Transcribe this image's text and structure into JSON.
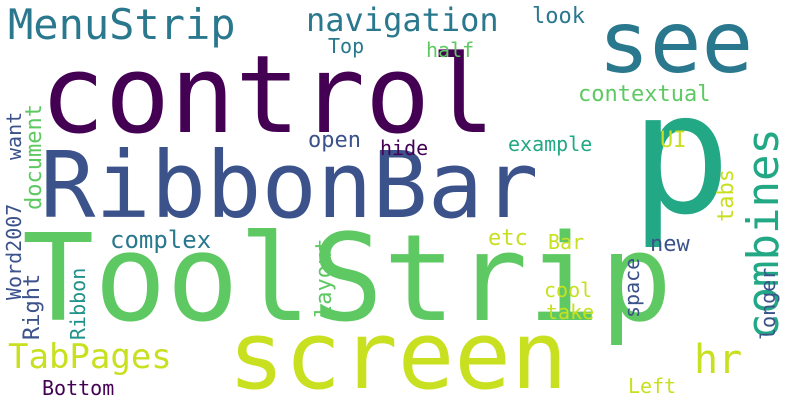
{
  "colors": {
    "background": "#ffffff",
    "palette": [
      "#440154",
      "#3b528b",
      "#2a788e",
      "#21918c",
      "#22a884",
      "#5ec962",
      "#addc30",
      "#c8e020"
    ]
  },
  "words": {
    "control": "control",
    "toolstrip": "ToolStrip",
    "ribbonbar": "RibbonBar",
    "see": "see",
    "p": "p",
    "screen": "screen",
    "menustrip": "MenuStrip",
    "combines": "combines",
    "navigation": "navigation",
    "tabpages": "TabPages",
    "hr": "hr",
    "look": "look",
    "top": "Top",
    "half": "half",
    "contextual": "contextual",
    "ui": "UI",
    "open": "open",
    "hide": "hide",
    "example": "example",
    "tabs": "tabs",
    "complex": "complex",
    "etc": "etc",
    "bar": "Bar",
    "new": "new",
    "cool": "cool",
    "take": "take",
    "bottom": "Bottom",
    "left": "Left",
    "document": "document",
    "want": "want",
    "word2007": "Word2007",
    "right": "Right",
    "ribbon": "Ribbon",
    "layout": "layout",
    "space": "space",
    "longer": "longer"
  }
}
